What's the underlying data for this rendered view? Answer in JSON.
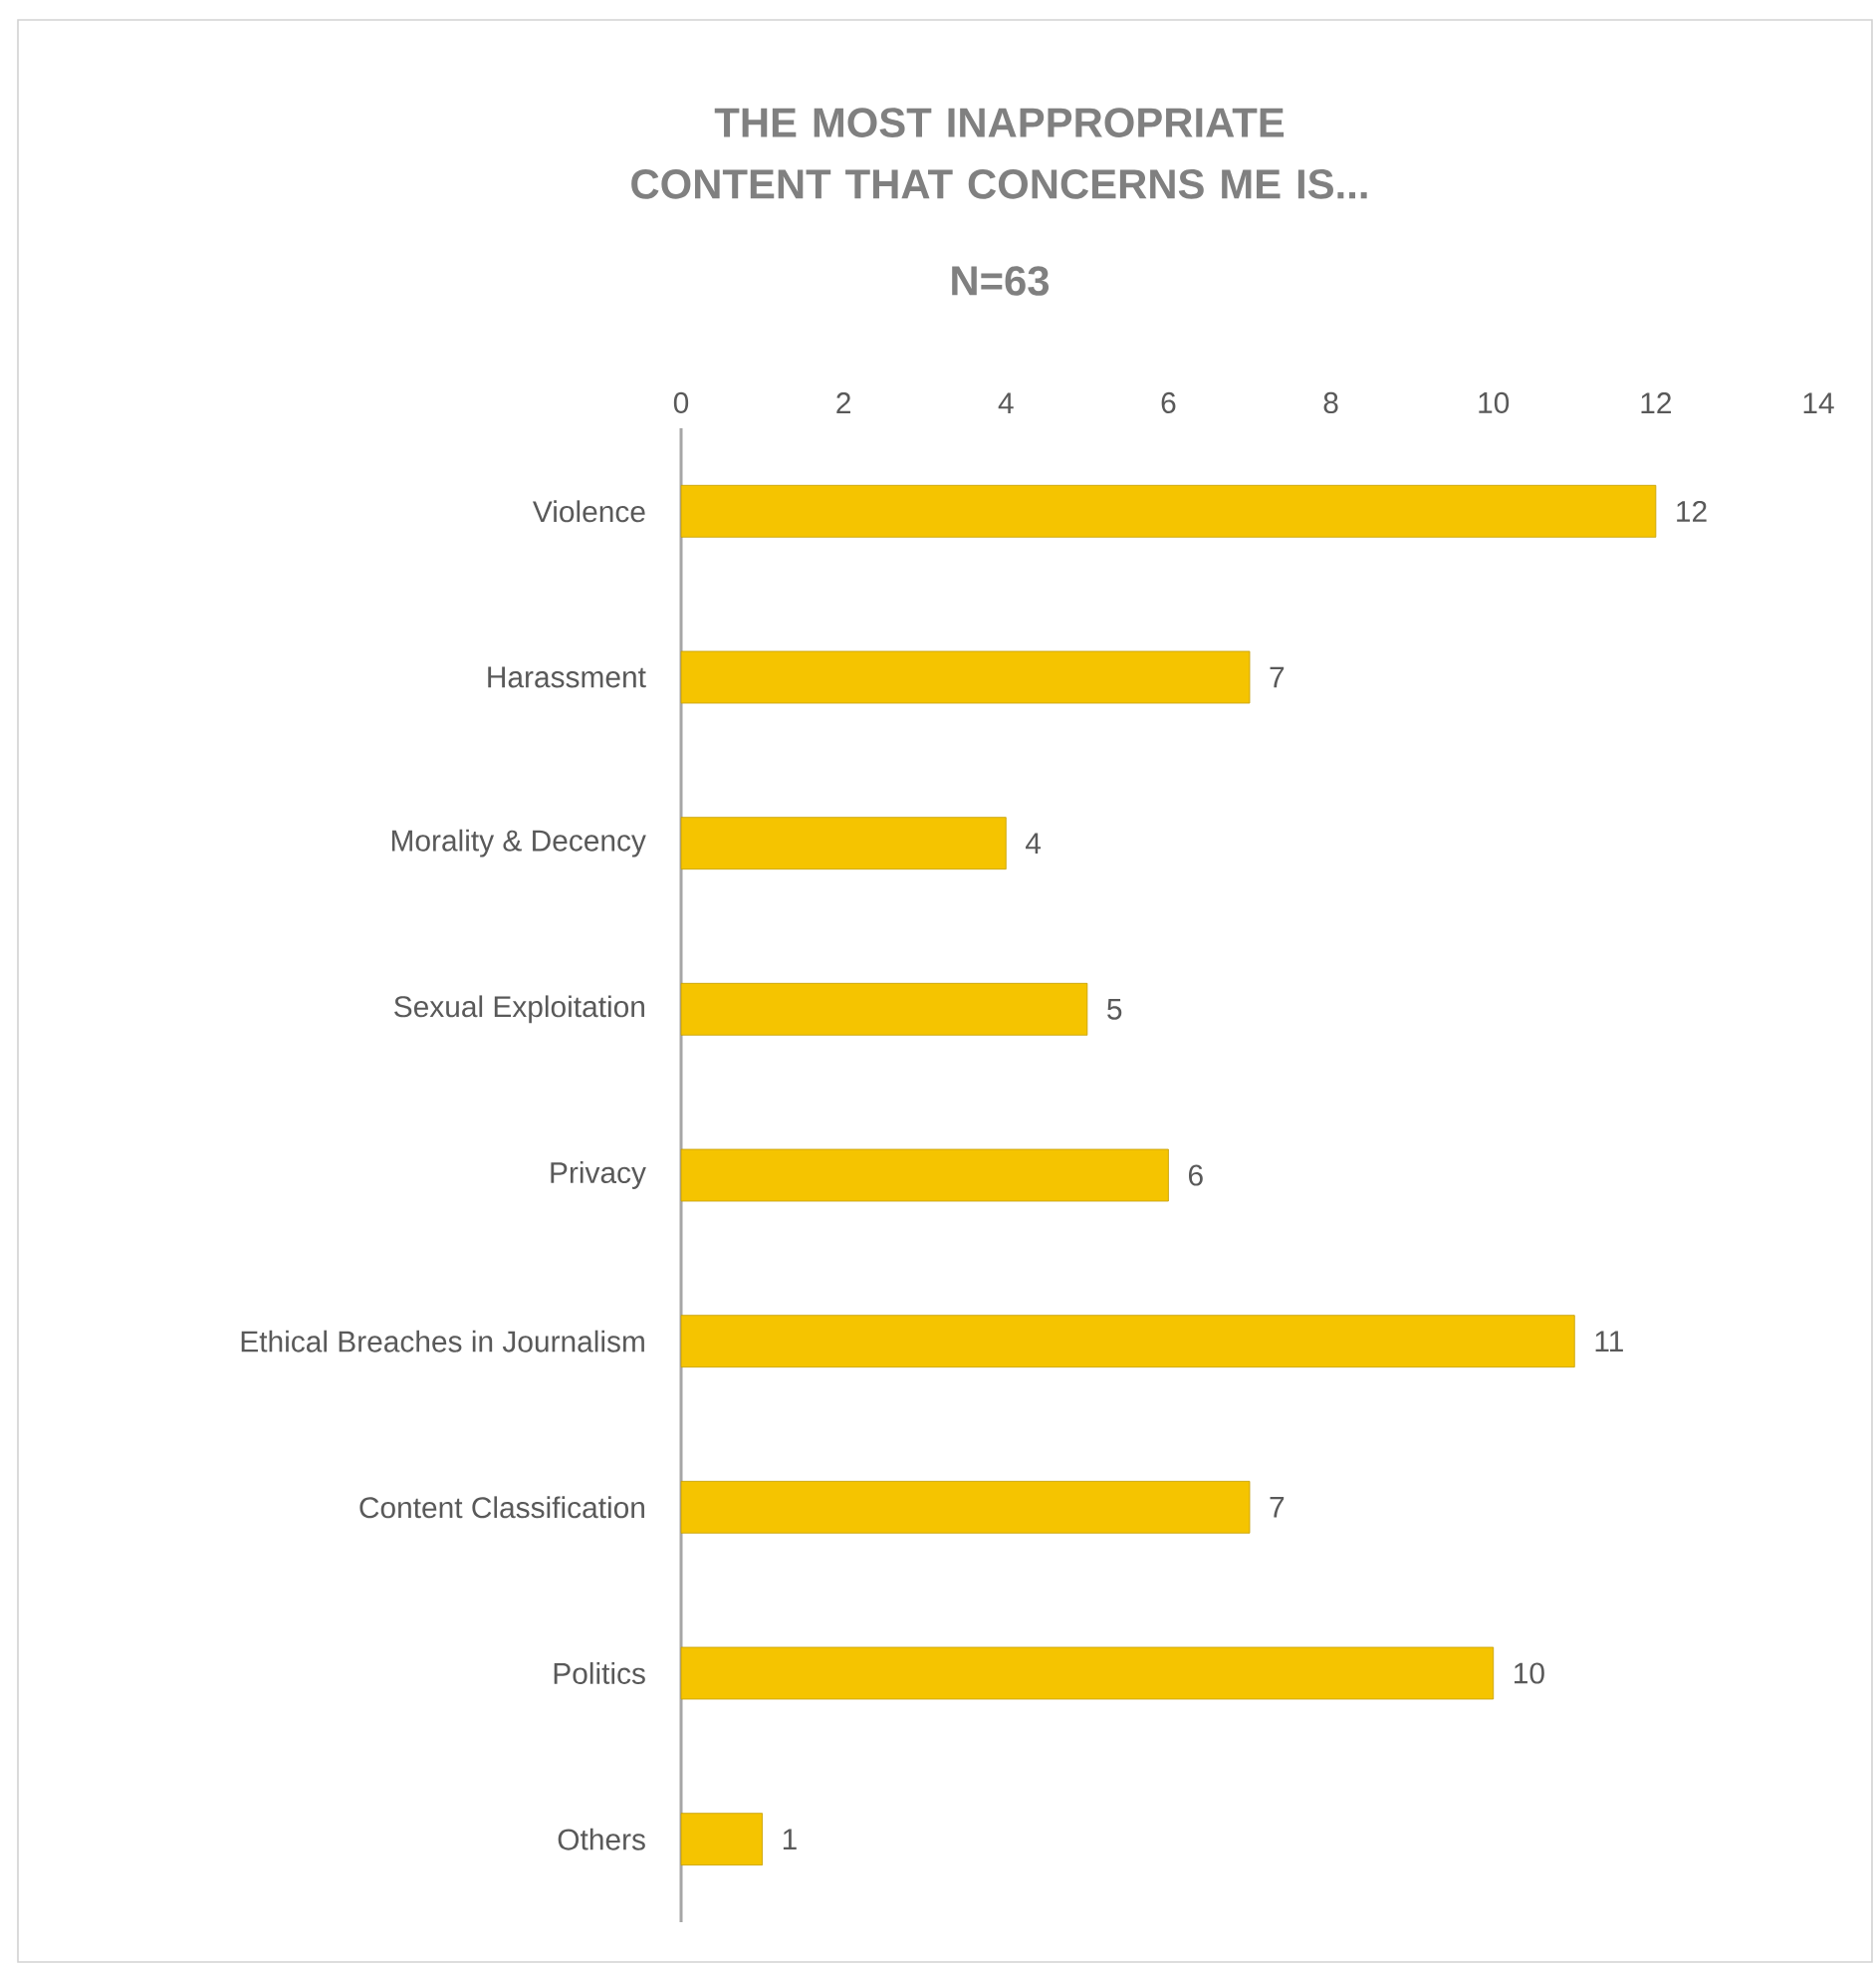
{
  "chart_data": {
    "type": "bar",
    "orientation": "horizontal",
    "title": "THE MOST INAPPROPRIATE CONTENT THAT CONCERNS ME IS...",
    "subtitle": "N=63",
    "categories": [
      "Violence",
      "Harassment",
      "Morality & Decency",
      "Sexual Exploitation",
      "Privacy",
      "Ethical Breaches in Journalism",
      "Content Classification",
      "Politics",
      "Others"
    ],
    "values": [
      12,
      7,
      4,
      5,
      6,
      11,
      7,
      10,
      1
    ],
    "color": "#f5c400",
    "xlim": [
      0,
      14
    ],
    "xticks": [
      0,
      2,
      4,
      6,
      8,
      10,
      12,
      14
    ],
    "data_labels": true
  }
}
